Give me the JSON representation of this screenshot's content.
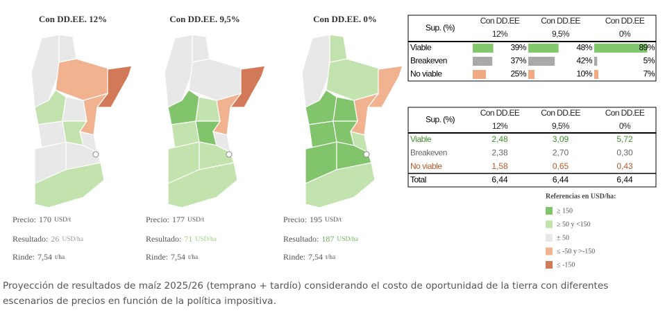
{
  "maps": [
    {
      "title": "Con DD.EE. 12%",
      "price_label": "Precio:",
      "price": 170,
      "price_unit": "USD/t",
      "result_label": "Resultado:",
      "result": 26,
      "result_unit": "USD/ha",
      "result_color": "#9a9a9a",
      "yield_label": "Rinde:",
      "yield": "7,54",
      "yield_unit": "t/ha",
      "regions": [
        2,
        2,
        3,
        4,
        1,
        2,
        3,
        2,
        1,
        2,
        2,
        2,
        1
      ]
    },
    {
      "title": "Con DD.EE. 9,5%",
      "price_label": "Precio:",
      "price": 177,
      "price_unit": "USD/t",
      "result_label": "Resultado:",
      "result": 71,
      "result_unit": "USD/ha",
      "result_color": "#9ccf7e",
      "yield_label": "Rinde:",
      "yield": "7,54",
      "yield_unit": "t/ha",
      "regions": [
        2,
        2,
        2,
        4,
        0,
        1,
        3,
        1,
        0,
        2,
        1,
        1,
        1
      ]
    },
    {
      "title": "Con DD.EE. 0%",
      "price_label": "Precio:",
      "price": 195,
      "price_unit": "USD/t",
      "result_label": "Resultado:",
      "result": 187,
      "result_unit": "USD/ha",
      "result_color": "#6fb25a",
      "yield_label": "Rinde:",
      "yield": "7,54",
      "yield_unit": "t/ha",
      "regions": [
        2,
        1,
        1,
        3,
        0,
        0,
        3,
        0,
        0,
        1,
        0,
        0,
        1
      ]
    }
  ],
  "share_table": {
    "header": "Sup. (%)",
    "columns": [
      [
        "Con DD.EE",
        "12%"
      ],
      [
        "Con DD.EE",
        "9,5%"
      ],
      [
        "Con DD.EE",
        "0%"
      ]
    ],
    "rows": [
      {
        "label": "Viable",
        "color": "#6cbf55",
        "cells": [
          {
            "value": 39,
            "label": "39%"
          },
          {
            "value": 48,
            "label": "48%"
          },
          {
            "value": 89,
            "label": "89%"
          }
        ]
      },
      {
        "label": "Breakeven",
        "color": "#9a9a9a",
        "cells": [
          {
            "value": 37,
            "label": "37%"
          },
          {
            "value": 42,
            "label": "42%"
          },
          {
            "value": 5,
            "label": "5%"
          }
        ]
      },
      {
        "label": "No viable",
        "color": "#ef9a6e",
        "cells": [
          {
            "value": 25,
            "label": "25%"
          },
          {
            "value": 10,
            "label": "10%"
          },
          {
            "value": 7,
            "label": "7%"
          }
        ]
      }
    ]
  },
  "area_table": {
    "header": "Sup. (%)",
    "columns": [
      [
        "Con DD.EE",
        "12%"
      ],
      [
        "Con DD.EE",
        "9,5%"
      ],
      [
        "Con DD.EE",
        "0%"
      ]
    ],
    "rows": [
      {
        "label": "Viable",
        "color": "#3f8f2c",
        "cells": [
          "2,48",
          "3,09",
          "5,72"
        ]
      },
      {
        "label": "Breakeven",
        "color": "#666666",
        "cells": [
          "2,38",
          "2,70",
          "0,30"
        ]
      },
      {
        "label": "No viable",
        "color": "#b45a2a",
        "cells": [
          "1,58",
          "0,65",
          "0,43"
        ]
      },
      {
        "label": "Total",
        "color": "#000000",
        "cells": [
          "6,44",
          "6,44",
          "6,44"
        ]
      }
    ]
  },
  "legend": {
    "title": "Referencias en USD/ha:",
    "items": [
      {
        "label": "≥ 150",
        "color": "#82c46c"
      },
      {
        "label": "≥ 50 y <150",
        "color": "#c3e3ae"
      },
      {
        "label": "± 50",
        "color": "#e8e8e8"
      },
      {
        "label": "≤ -50 y >-150",
        "color": "#f1b290"
      },
      {
        "label": "≤ -150",
        "color": "#d27a58"
      }
    ]
  },
  "caption": "Proyección de resultados de maíz 2025/26 (temprano + tardío) considerando el costo de oportunidad de la tierra con diferentes escenarios de precios en función de la política impositiva."
}
